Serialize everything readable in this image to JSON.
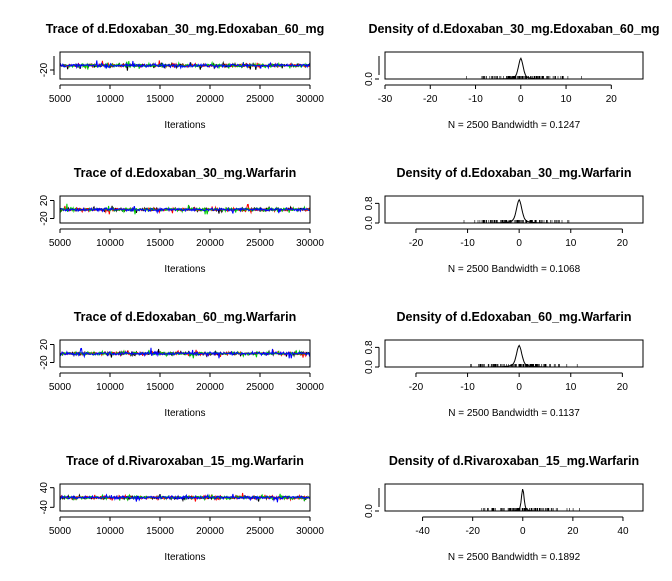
{
  "chart_data": [
    {
      "type": "line",
      "title": "Trace of d.Edoxaban_30_mg.Edoxaban_60_mg",
      "xlabel": "Iterations",
      "xlim": [
        5000,
        30000
      ],
      "xticks": [
        "5000",
        "10000",
        "15000",
        "20000",
        "25000",
        "30000"
      ],
      "ylim": [
        -40,
        20
      ],
      "yticks": [
        "-20"
      ],
      "series_colors": [
        "#000000",
        "#ff0000",
        "#00cd00",
        "#0000ff"
      ]
    },
    {
      "type": "line",
      "title": "Density of d.Edoxaban_30_mg.Edoxaban_60_mg",
      "xlabel": "N = 2500   Bandwidth = 0.1247",
      "xlim": [
        -30,
        27
      ],
      "xticks": [
        "-30",
        "-20",
        "-10",
        "0",
        "10",
        "20"
      ],
      "ylim": [
        0,
        1.3
      ],
      "yticks": [
        "0.0"
      ],
      "peak_x": 0,
      "peak_y": 1.0
    },
    {
      "type": "line",
      "title": "Trace of d.Edoxaban_30_mg.Warfarin",
      "xlabel": "Iterations",
      "xlim": [
        5000,
        30000
      ],
      "xticks": [
        "5000",
        "10000",
        "15000",
        "20000",
        "25000",
        "30000"
      ],
      "ylim": [
        -30,
        30
      ],
      "yticks": [
        "-20",
        "20"
      ],
      "series_colors": [
        "#000000",
        "#ff0000",
        "#00cd00",
        "#0000ff"
      ]
    },
    {
      "type": "line",
      "title": "Density of d.Edoxaban_30_mg.Warfarin",
      "xlabel": "N = 2500   Bandwidth = 0.1068",
      "xlim": [
        -26,
        24
      ],
      "xticks": [
        "-20",
        "-10",
        "0",
        "10",
        "20"
      ],
      "ylim": [
        0,
        1.1
      ],
      "yticks": [
        "0.0",
        "0.8"
      ],
      "peak_x": 0,
      "peak_y": 0.95
    },
    {
      "type": "line",
      "title": "Trace of d.Edoxaban_60_mg.Warfarin",
      "xlabel": "Iterations",
      "xlim": [
        5000,
        30000
      ],
      "xticks": [
        "5000",
        "10000",
        "15000",
        "20000",
        "25000",
        "30000"
      ],
      "ylim": [
        -30,
        30
      ],
      "yticks": [
        "-20",
        "20"
      ],
      "series_colors": [
        "#000000",
        "#ff0000",
        "#00cd00",
        "#0000ff"
      ]
    },
    {
      "type": "line",
      "title": "Density of d.Edoxaban_60_mg.Warfarin",
      "xlabel": "N = 2500   Bandwidth = 0.1137",
      "xlim": [
        -26,
        24
      ],
      "xticks": [
        "-20",
        "-10",
        "0",
        "10",
        "20"
      ],
      "ylim": [
        0,
        1.1
      ],
      "yticks": [
        "0.0",
        "0.8"
      ],
      "peak_x": 0,
      "peak_y": 0.88
    },
    {
      "type": "line",
      "title": "Trace of d.Rivaroxaban_15_mg.Warfarin",
      "xlabel": "Iterations",
      "xlim": [
        5000,
        30000
      ],
      "xticks": [
        "5000",
        "10000",
        "15000",
        "20000",
        "25000",
        "30000"
      ],
      "ylim": [
        -55,
        55
      ],
      "yticks": [
        "-40",
        "40"
      ],
      "series_colors": [
        "#000000",
        "#ff0000",
        "#00cd00",
        "#0000ff"
      ]
    },
    {
      "type": "line",
      "title": "Density of d.Rivaroxaban_15_mg.Warfarin",
      "xlabel": "N = 2500   Bandwidth = 0.1892",
      "xlim": [
        -55,
        48
      ],
      "xticks": [
        "-40",
        "-20",
        "0",
        "20",
        "40"
      ],
      "ylim": [
        0,
        0.75
      ],
      "yticks": [
        "0.0"
      ],
      "peak_x": 0,
      "peak_y": 0.62
    }
  ]
}
